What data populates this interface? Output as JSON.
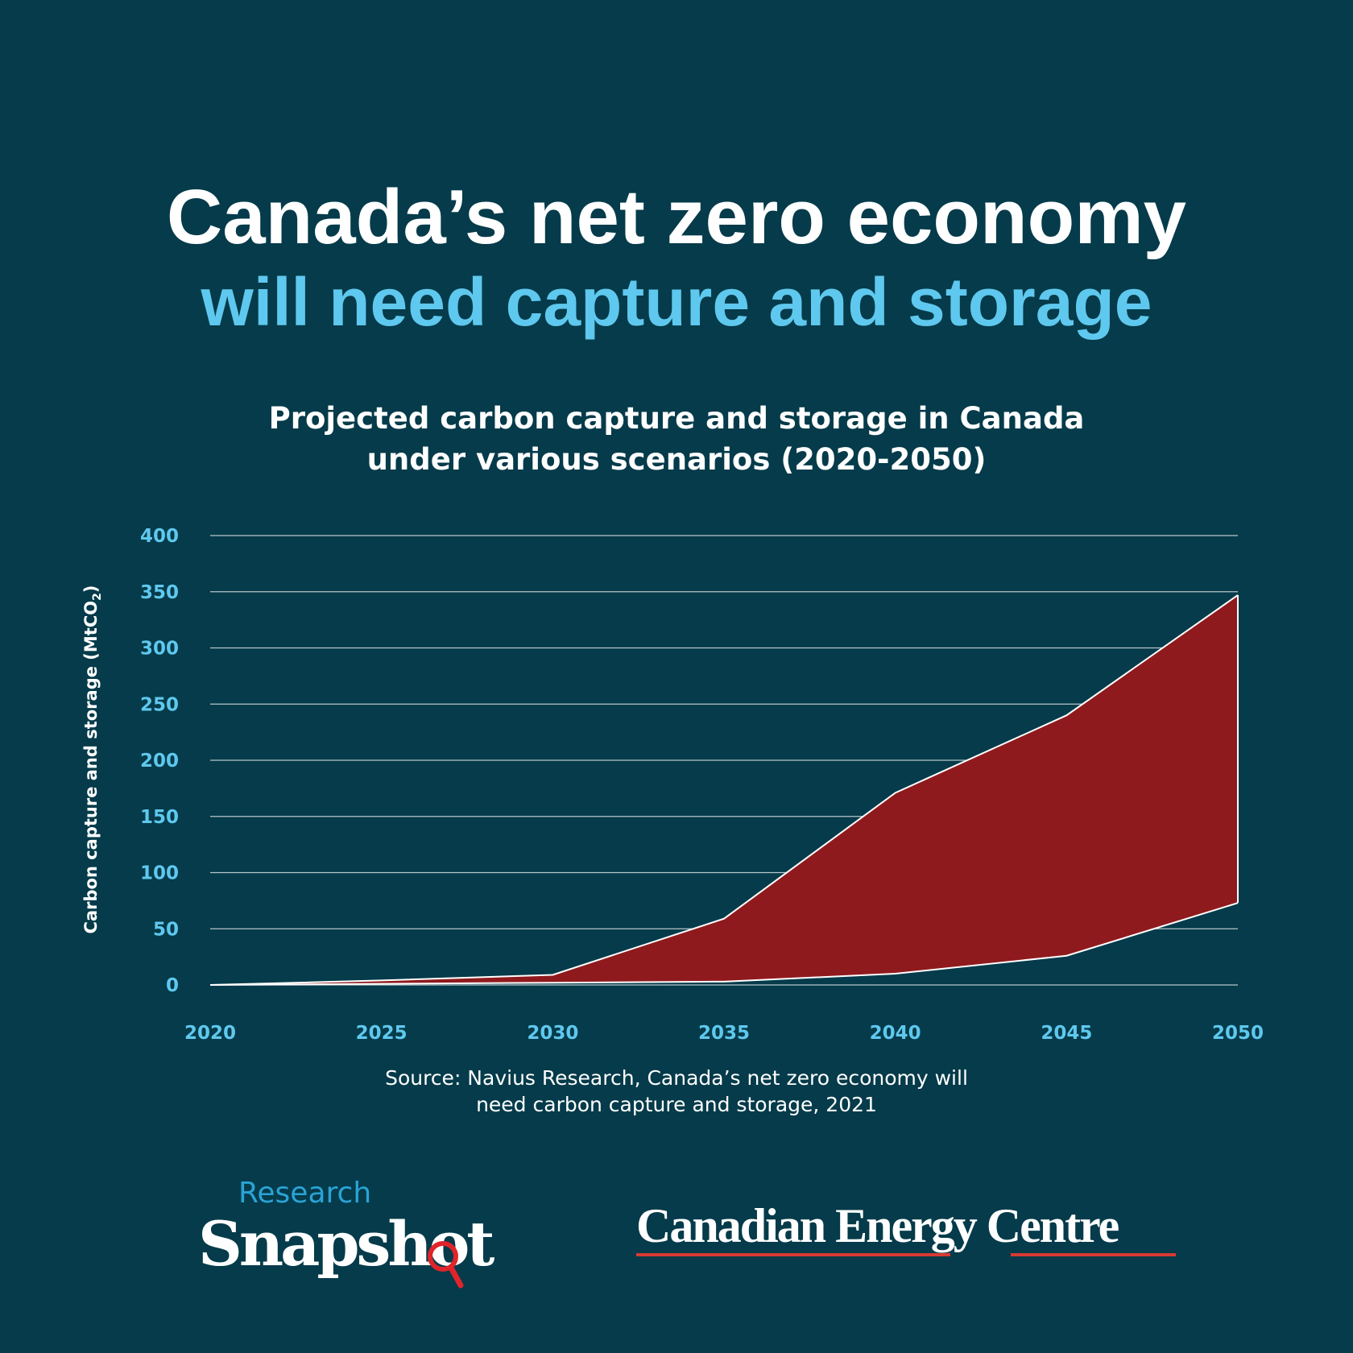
{
  "title": {
    "line1": "Canada’s net zero economy",
    "line2": "will need capture and storage"
  },
  "colors": {
    "background": "#053b4a",
    "accent_blue": "#5fc8ee",
    "fill_red": "#8f1a1d",
    "logo_red": "#d63a32"
  },
  "chart_data": {
    "type": "area",
    "title": [
      "Projected carbon capture and storage in Canada",
      "under various scenarios (2020-2050)"
    ],
    "ylabel": "Carbon capture and storage (MtCO",
    "ylabel_subscript": "2",
    "ylabel_close": ")",
    "xlabel": "",
    "x": [
      2020,
      2025,
      2030,
      2035,
      2040,
      2045,
      2050
    ],
    "x_tick_labels": [
      "2020",
      "2025",
      "2030",
      "2035",
      "2040",
      "2045",
      "2050"
    ],
    "y_tick_labels": [
      "0",
      "50",
      "100",
      "150",
      "200",
      "250",
      "300",
      "350",
      "400"
    ],
    "ylim": [
      0,
      400
    ],
    "xlim": [
      2020,
      2050
    ],
    "grid": "horizontal",
    "band": {
      "upper": [
        0,
        4,
        9,
        59,
        171,
        240,
        347
      ],
      "lower": [
        0,
        1,
        2,
        3,
        10,
        26,
        73
      ]
    }
  },
  "source": {
    "line1": "Source: Navius Research, Canada’s net zero economy will",
    "line2": "need carbon capture and storage, 2021"
  },
  "logos": {
    "research_snapshot": {
      "top": "Research",
      "bottom": "Snapshot"
    },
    "cec": "Canadian Energy Centre"
  }
}
